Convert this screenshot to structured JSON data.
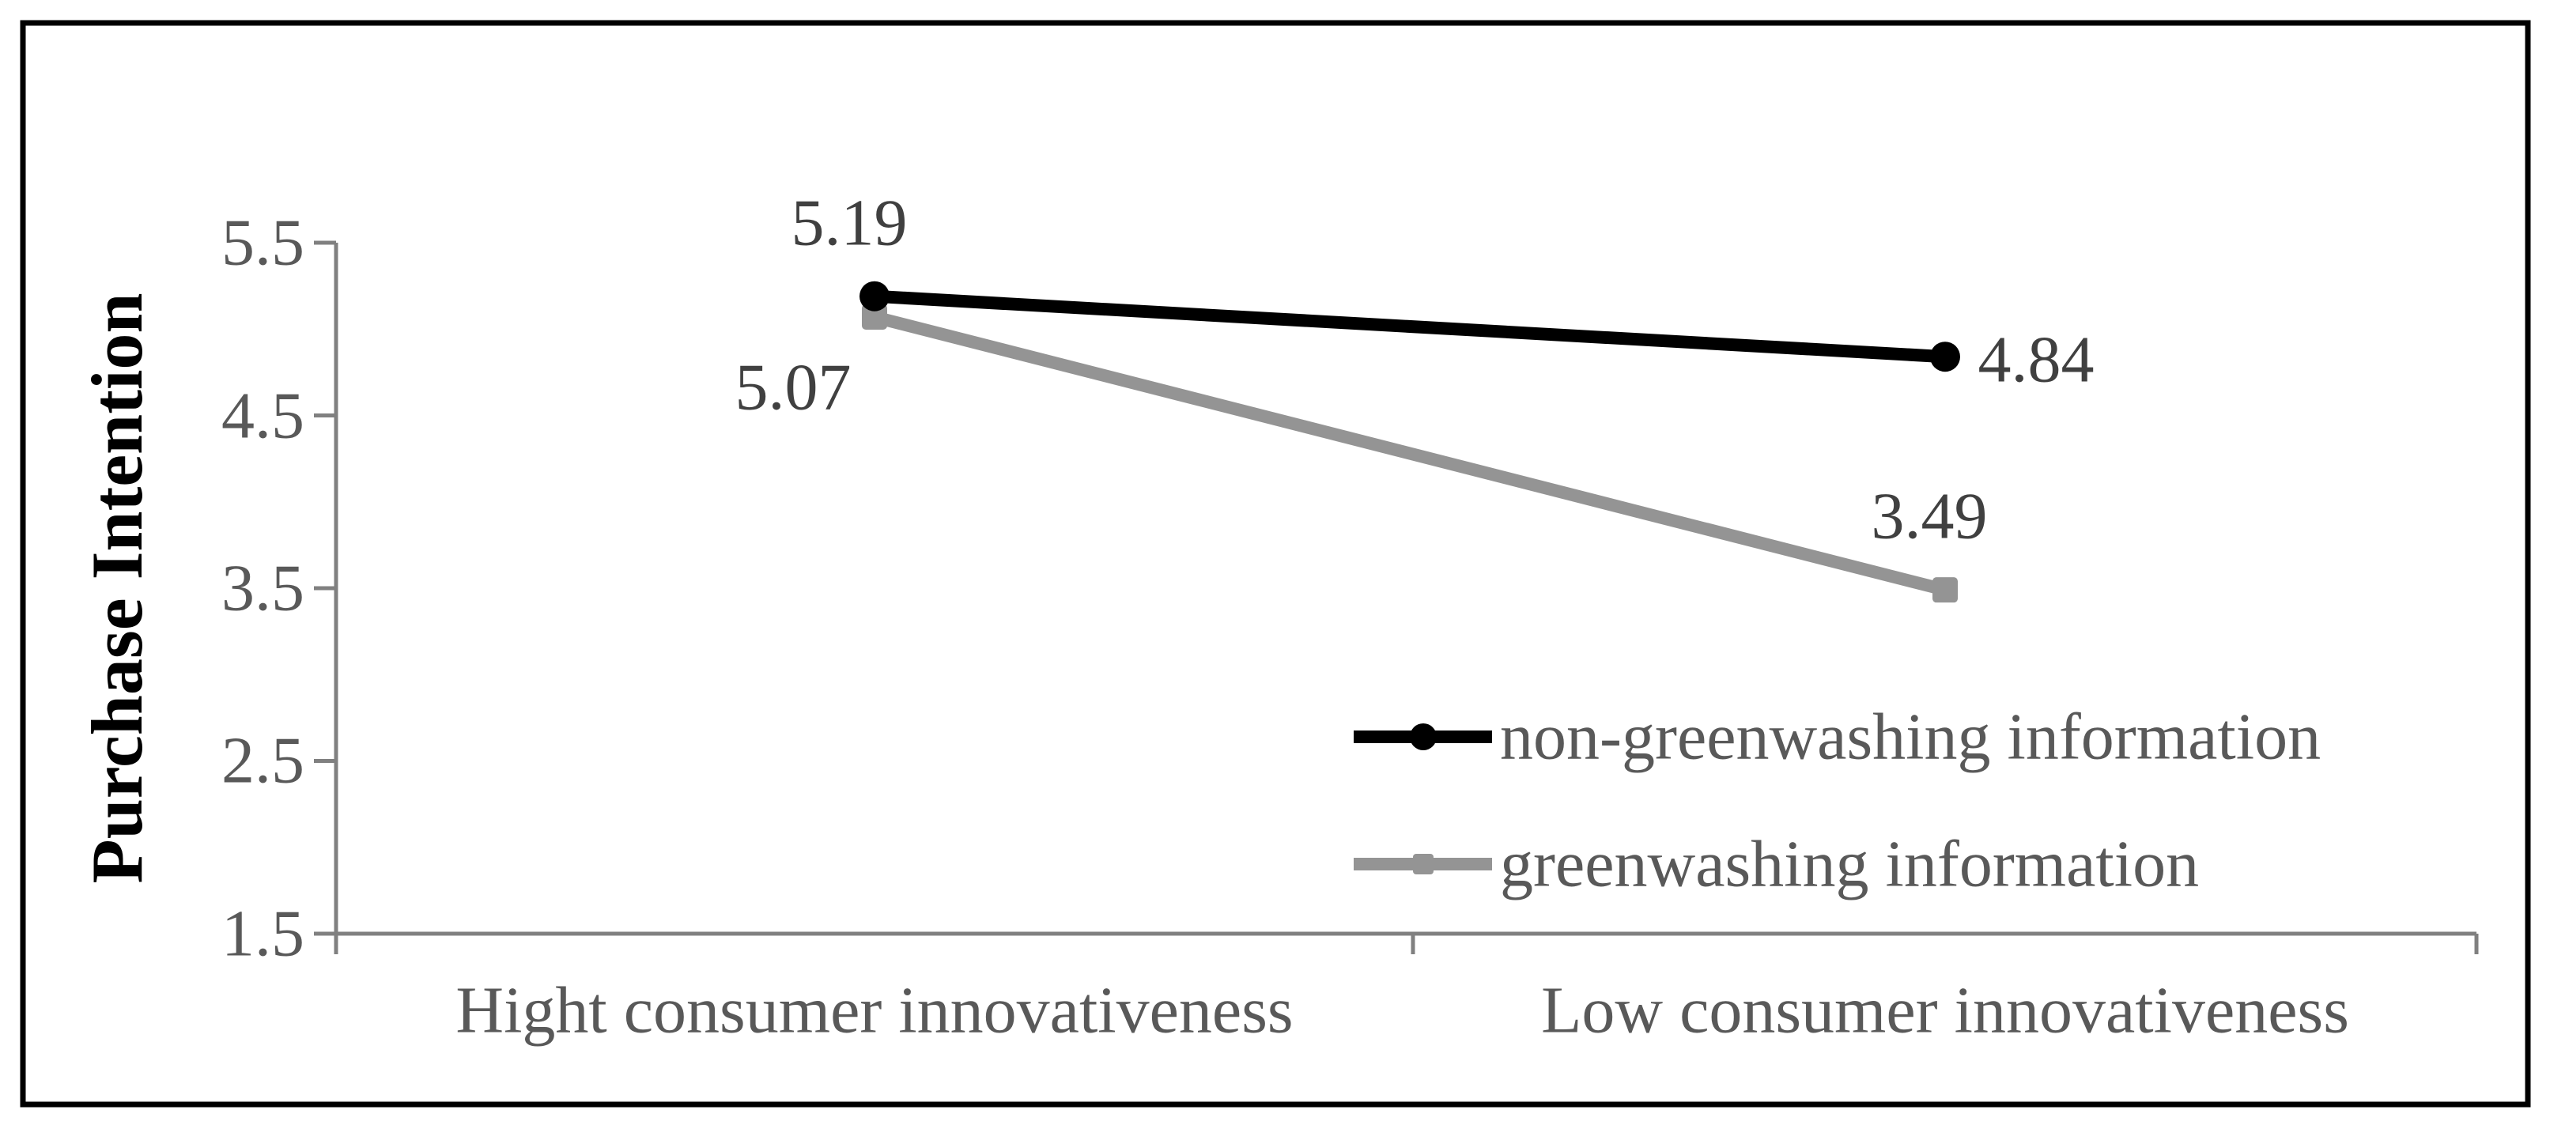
{
  "figure": {
    "background": "#ffffff",
    "border_color": "#000000"
  },
  "chart_data": {
    "type": "line",
    "title": "",
    "xlabel": "",
    "ylabel": "Purchase Intention",
    "categories": [
      "Hight consumer innovativeness",
      "Low consumer innovativeness"
    ],
    "series": [
      {
        "name": "non-greenwashing information",
        "color": "#000000",
        "marker": "circle",
        "values": [
          5.19,
          4.84
        ],
        "data_labels": [
          "5.19",
          "4.84"
        ]
      },
      {
        "name": "greenwashing information",
        "color": "#949494",
        "marker": "square",
        "values": [
          5.07,
          3.49
        ],
        "data_labels": [
          "5.07",
          "3.49"
        ]
      }
    ],
    "ylim": [
      1.5,
      5.5
    ],
    "ytick_step": 1.0,
    "yticks": [
      "5.5",
      "4.5",
      "3.5",
      "2.5",
      "1.5"
    ],
    "grid": false,
    "legend_position": "inside-bottom-right",
    "axis_color": "#808080",
    "tick_text_color": "#595959",
    "data_label_color": "#404040",
    "legend_text_color": "#595959"
  }
}
